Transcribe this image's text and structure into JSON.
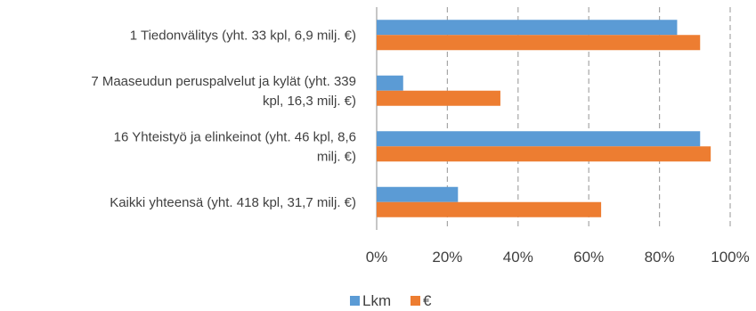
{
  "chart_data": {
    "type": "bar",
    "orientation": "horizontal",
    "categories": [
      [
        "1 Tiedonvälitys (yht. 33 kpl, 6,9 milj. €)"
      ],
      [
        "7 Maaseudun peruspalvelut ja kylät (yht. 339",
        "kpl, 16,3 milj. €)"
      ],
      [
        "16 Yhteistyö ja elinkeinot (yht. 46 kpl, 8,6",
        "milj. €)"
      ],
      [
        "Kaikki yhteensä (yht. 418 kpl, 31,7 milj. €)"
      ]
    ],
    "series": [
      {
        "name": "Lkm",
        "color": "#5B9BD5",
        "values": [
          85,
          7.5,
          91.5,
          23
        ]
      },
      {
        "name": "€",
        "color": "#ED7D31",
        "values": [
          91.5,
          35,
          94.5,
          63.5
        ]
      }
    ],
    "xlim": [
      0,
      100
    ],
    "xticks": [
      "0%",
      "20%",
      "40%",
      "60%",
      "80%",
      "100%"
    ],
    "grid": "vertical dashed",
    "legend_position": "bottom"
  }
}
